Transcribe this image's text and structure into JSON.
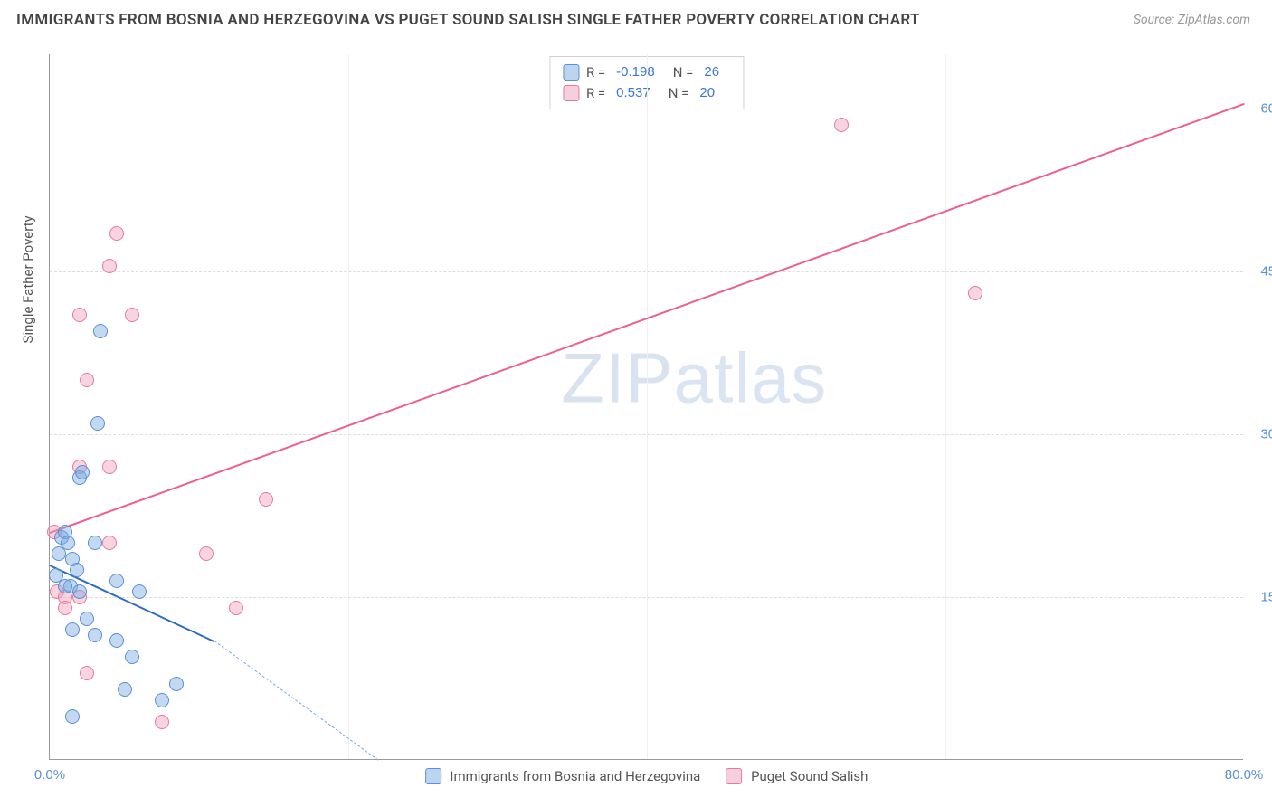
{
  "title": "IMMIGRANTS FROM BOSNIA AND HERZEGOVINA VS PUGET SOUND SALISH SINGLE FATHER POVERTY CORRELATION CHART",
  "source": "Source: ZipAtlas.com",
  "watermark": "ZIPatlas",
  "chart": {
    "type": "scatter",
    "background_color": "#ffffff",
    "grid_color": "#dddddd",
    "axis_color": "#999999",
    "tick_color": "#5b8fd6",
    "label_color": "#555555",
    "marker_radius": 8,
    "ylabel": "Single Father Poverty",
    "x_range": [
      0,
      80
    ],
    "y_range": [
      0,
      65
    ],
    "x_ticks": [
      {
        "v": 0,
        "label": "0.0%"
      },
      {
        "v": 80,
        "label": "80.0%"
      }
    ],
    "y_ticks": [
      {
        "v": 15,
        "label": "15.0%"
      },
      {
        "v": 30,
        "label": "30.0%"
      },
      {
        "v": 45,
        "label": "45.0%"
      },
      {
        "v": 60,
        "label": "60.0%"
      }
    ],
    "x_gridlines": [
      20,
      40,
      60
    ],
    "series_a": {
      "name": "Immigrants from Bosnia and Herzegovina",
      "color_fill": "rgba(120,170,225,0.45)",
      "color_stroke": "#5b8fd6",
      "R": "-0.198",
      "N": "26",
      "points": [
        [
          0.4,
          17
        ],
        [
          0.6,
          19
        ],
        [
          0.8,
          20.5
        ],
        [
          1.0,
          21
        ],
        [
          1.2,
          20
        ],
        [
          1.5,
          18.5
        ],
        [
          1.4,
          16
        ],
        [
          1.8,
          17.5
        ],
        [
          2.0,
          15.5
        ],
        [
          1.0,
          16
        ],
        [
          3.4,
          39.5
        ],
        [
          3.2,
          31
        ],
        [
          2.0,
          26
        ],
        [
          2.2,
          26.5
        ],
        [
          3.0,
          20
        ],
        [
          4.5,
          16.5
        ],
        [
          1.5,
          12
        ],
        [
          2.5,
          13
        ],
        [
          3.0,
          11.5
        ],
        [
          4.5,
          11
        ],
        [
          5.5,
          9.5
        ],
        [
          7.5,
          5.5
        ],
        [
          5.0,
          6.5
        ],
        [
          1.5,
          4
        ],
        [
          8.5,
          7
        ],
        [
          6.0,
          15.5
        ]
      ],
      "trend": {
        "x1": 0,
        "y1": 18,
        "x2": 11,
        "y2": 11,
        "dash_to_x": 22,
        "dash_to_y": 0
      }
    },
    "series_b": {
      "name": "Puget Sound Salish",
      "color_fill": "rgba(240,160,185,0.45)",
      "color_stroke": "#e47aa0",
      "R": "0.537",
      "N": "20",
      "points": [
        [
          4.5,
          48.5
        ],
        [
          4.0,
          45.5
        ],
        [
          2.0,
          41
        ],
        [
          5.5,
          41
        ],
        [
          2.5,
          35
        ],
        [
          2.0,
          27
        ],
        [
          4.0,
          27
        ],
        [
          14.5,
          24
        ],
        [
          10.5,
          19
        ],
        [
          4.0,
          20
        ],
        [
          0.5,
          15.5
        ],
        [
          2.0,
          15
        ],
        [
          1.0,
          15
        ],
        [
          1.0,
          14
        ],
        [
          12.5,
          14
        ],
        [
          2.5,
          8
        ],
        [
          7.5,
          3.5
        ],
        [
          53,
          58.5
        ],
        [
          62,
          43
        ],
        [
          0.3,
          21
        ]
      ],
      "trend": {
        "x1": 0,
        "y1": 21,
        "x2": 80,
        "y2": 60.5
      }
    }
  },
  "legend_top": {
    "rows": [
      {
        "swatch": "blue",
        "r_label": "R =",
        "r": "-0.198",
        "n_label": "N =",
        "n": "26"
      },
      {
        "swatch": "pink",
        "r_label": "R =",
        "r": "0.537",
        "n_label": "N =",
        "n": "20"
      }
    ]
  },
  "legend_bottom": {
    "items": [
      {
        "swatch": "blue",
        "label": "Immigrants from Bosnia and Herzegovina"
      },
      {
        "swatch": "pink",
        "label": "Puget Sound Salish"
      }
    ]
  }
}
